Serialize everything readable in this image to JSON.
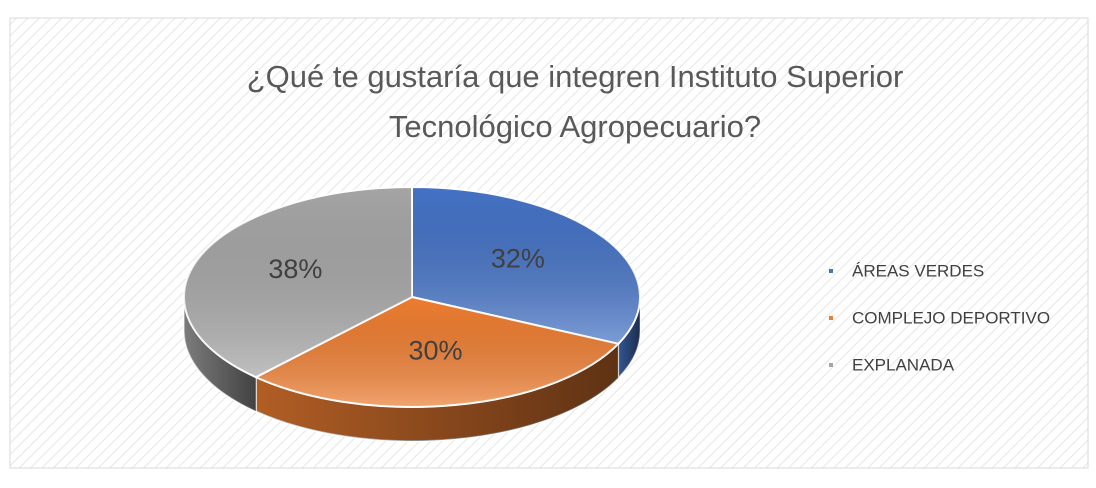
{
  "chart_data": {
    "type": "pie",
    "title": "¿Qué te gustaría que integren Instituto Superior Tecnológico Agropecuario?",
    "categories": [
      "ÁREAS VERDES",
      "COMPLEJO DEPORTIVO",
      "EXPLANADA"
    ],
    "values": [
      32,
      30,
      38
    ],
    "value_labels": [
      "32%",
      "30%",
      "38%"
    ],
    "colors": [
      "#4472c4",
      "#ed7d31",
      "#a5a5a5"
    ],
    "legend": "right"
  }
}
